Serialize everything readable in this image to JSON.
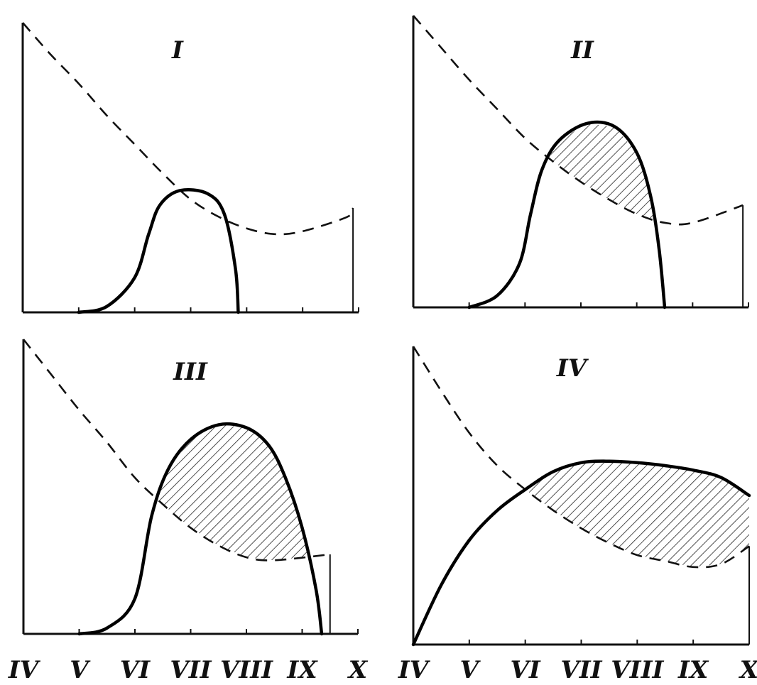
{
  "chart_data": [
    {
      "type": "line",
      "title": "I",
      "x_ticks": [
        "IV",
        "V",
        "VI",
        "VII",
        "VIII",
        "IX",
        "X"
      ],
      "xlim": [
        0,
        6
      ],
      "ylim": [
        0,
        1
      ],
      "series": [
        {
          "style": "dashed",
          "x": [
            0,
            0.5,
            1,
            1.5,
            2,
            2.5,
            3,
            3.5,
            4,
            4.5,
            5,
            5.8,
            5.9
          ],
          "y": [
            1.0,
            0.89,
            0.79,
            0.68,
            0.58,
            0.48,
            0.39,
            0.33,
            0.29,
            0.27,
            0.28,
            0.33,
            0.36
          ]
        },
        {
          "style": "solid",
          "x": [
            1.0,
            1.5,
            2.0,
            2.25,
            2.45,
            2.8,
            3.3,
            3.6,
            3.8,
            3.85
          ],
          "y": [
            0.0,
            0.02,
            0.12,
            0.27,
            0.37,
            0.42,
            0.41,
            0.34,
            0.15,
            0.0
          ]
        }
      ]
    },
    {
      "type": "area",
      "title": "II",
      "x_ticks": [
        "IV",
        "V",
        "VI",
        "VII",
        "VIII",
        "IX",
        "X"
      ],
      "xlim": [
        0,
        6
      ],
      "ylim": [
        0,
        1
      ],
      "series": [
        {
          "style": "dashed",
          "x": [
            0,
            0.5,
            1,
            1.5,
            2,
            2.5,
            3,
            3.5,
            4,
            4.5,
            5,
            5.9
          ],
          "y": [
            1.0,
            0.89,
            0.78,
            0.68,
            0.58,
            0.5,
            0.43,
            0.37,
            0.32,
            0.29,
            0.29,
            0.35
          ]
        },
        {
          "style": "solid",
          "x": [
            1.0,
            1.5,
            1.9,
            2.1,
            2.3,
            2.6,
            3.1,
            3.6,
            4.0,
            4.25,
            4.4,
            4.5
          ],
          "y": [
            0.0,
            0.04,
            0.15,
            0.32,
            0.47,
            0.57,
            0.63,
            0.62,
            0.53,
            0.38,
            0.2,
            0.0
          ]
        }
      ],
      "shaded_region": "between solid and dashed curves from VI to IX"
    },
    {
      "type": "area",
      "title": "III",
      "x_ticks": [
        "IV",
        "V",
        "VI",
        "VII",
        "VIII",
        "IX",
        "X"
      ],
      "xlim": [
        0,
        6
      ],
      "ylim": [
        0,
        1
      ],
      "series": [
        {
          "style": "dashed",
          "x": [
            0,
            0.5,
            1,
            1.5,
            2,
            2.5,
            3,
            3.5,
            4,
            4.5,
            5.5
          ],
          "y": [
            1.0,
            0.88,
            0.76,
            0.65,
            0.53,
            0.44,
            0.36,
            0.3,
            0.26,
            0.25,
            0.27
          ]
        },
        {
          "style": "solid",
          "x": [
            1.0,
            1.5,
            2.0,
            2.3,
            2.6,
            3.0,
            3.5,
            4.0,
            4.4,
            4.7,
            5.0,
            5.25,
            5.35
          ],
          "y": [
            0.0,
            0.02,
            0.12,
            0.4,
            0.56,
            0.66,
            0.71,
            0.7,
            0.64,
            0.53,
            0.36,
            0.15,
            0.0
          ]
        }
      ],
      "shaded_region": "between solid and dashed curves from VI to IX"
    },
    {
      "type": "area",
      "title": "IV",
      "x_ticks": [
        "IV",
        "V",
        "VI",
        "VII",
        "VIII",
        "IX",
        "X"
      ],
      "xlim": [
        0,
        6
      ],
      "ylim": [
        0,
        1
      ],
      "series": [
        {
          "style": "dashed",
          "x": [
            0,
            0.5,
            1,
            1.5,
            2,
            2.5,
            3,
            3.5,
            4,
            4.5,
            5,
            5.5,
            6
          ],
          "y": [
            1.0,
            0.85,
            0.71,
            0.6,
            0.52,
            0.45,
            0.39,
            0.34,
            0.3,
            0.28,
            0.26,
            0.27,
            0.33
          ]
        },
        {
          "style": "solid",
          "x": [
            0,
            0.5,
            1,
            1.5,
            2,
            2.5,
            3,
            3.5,
            4,
            4.5,
            5,
            5.5,
            6
          ],
          "y": [
            0.0,
            0.2,
            0.35,
            0.45,
            0.52,
            0.58,
            0.61,
            0.615,
            0.61,
            0.6,
            0.585,
            0.56,
            0.5
          ]
        }
      ],
      "shaded_region": "between solid and dashed curves from VI to X"
    }
  ]
}
